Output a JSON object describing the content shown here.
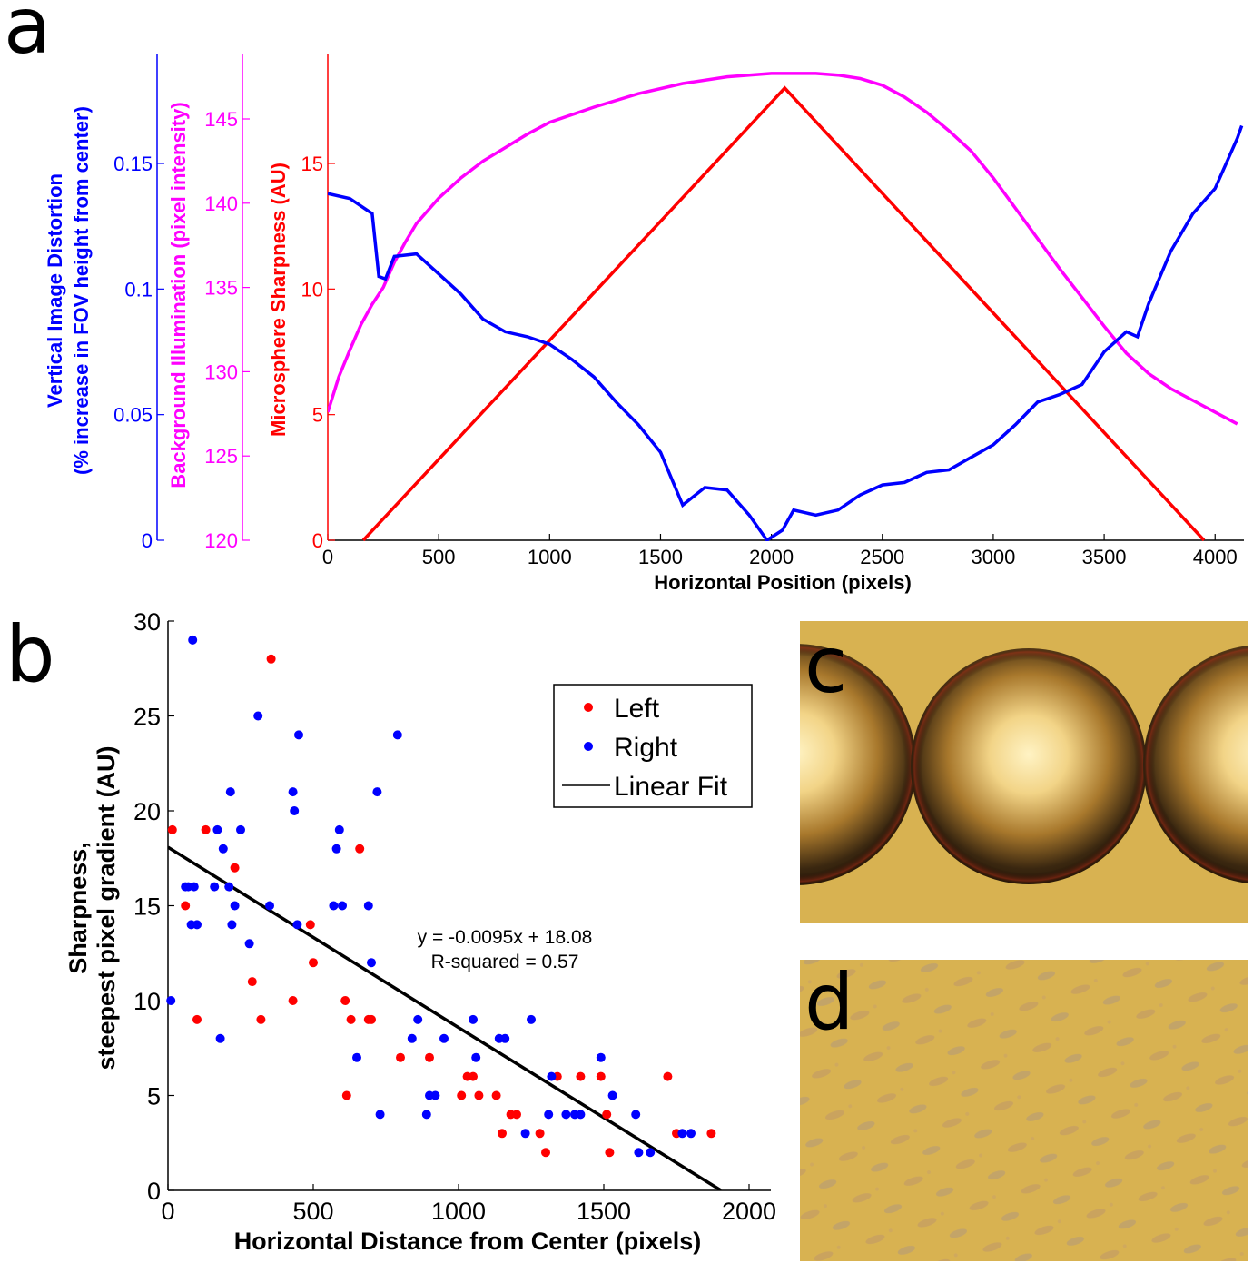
{
  "panels": {
    "a": "a",
    "b": "b",
    "c": "c",
    "d": "d"
  },
  "colors": {
    "distortion": "#0000ff",
    "illumination": "#ff00ff",
    "sharpness": "#ff0000",
    "left": "#ff0000",
    "right": "#0000ff",
    "fit": "#000000",
    "photo_bg": "#d8b251"
  },
  "chart_data": [
    {
      "panel": "a",
      "type": "line",
      "xlabel": "Horizontal Position (pixels)",
      "xlim": [
        0,
        4130
      ],
      "xticks": [
        0,
        500,
        1000,
        1500,
        2000,
        2500,
        3000,
        3500,
        4000
      ],
      "axes": {
        "distortion": {
          "label_line1": "Vertical Image Distortion",
          "label_line2": "(% increase in FOV height from center)",
          "ylim": [
            0,
            0.15
          ],
          "ticks": [
            0,
            0.05,
            0.1,
            0.15
          ],
          "tick_labels": [
            "0",
            "0.05",
            "0.1",
            "0.15"
          ]
        },
        "illumination": {
          "label": "Background Illumination (pixel intensity)",
          "ylim": [
            120,
            147.5
          ],
          "ticks": [
            120,
            125,
            130,
            135,
            140,
            145
          ],
          "tick_labels": [
            "120",
            "125",
            "130",
            "135",
            "140",
            "145"
          ]
        },
        "sharpness": {
          "label": "Microsphere Sharpness (AU)",
          "ylim": [
            0,
            18
          ],
          "ticks": [
            0,
            5,
            10,
            15
          ],
          "tick_labels": [
            "0",
            "5",
            "10",
            "15"
          ]
        }
      },
      "series": [
        {
          "axis": "distortion",
          "x": [
            0,
            100,
            200,
            230,
            260,
            300,
            400,
            500,
            600,
            700,
            800,
            900,
            1000,
            1100,
            1200,
            1300,
            1400,
            1500,
            1600,
            1700,
            1800,
            1900,
            1980,
            2050,
            2100,
            2200,
            2300,
            2400,
            2500,
            2600,
            2700,
            2800,
            2900,
            3000,
            3100,
            3200,
            3300,
            3400,
            3500,
            3600,
            3650,
            3700,
            3800,
            3900,
            4000,
            4100,
            4120
          ],
          "y": [
            0.138,
            0.136,
            0.13,
            0.105,
            0.104,
            0.113,
            0.114,
            0.106,
            0.098,
            0.088,
            0.083,
            0.081,
            0.078,
            0.072,
            0.065,
            0.055,
            0.046,
            0.035,
            0.014,
            0.021,
            0.02,
            0.01,
            0.0,
            0.004,
            0.012,
            0.01,
            0.012,
            0.018,
            0.022,
            0.023,
            0.027,
            0.028,
            0.033,
            0.038,
            0.046,
            0.055,
            0.058,
            0.062,
            0.075,
            0.083,
            0.081,
            0.094,
            0.115,
            0.13,
            0.14,
            0.16,
            0.165
          ]
        },
        {
          "axis": "illumination",
          "x": [
            0,
            50,
            100,
            150,
            200,
            250,
            300,
            350,
            400,
            500,
            600,
            700,
            800,
            900,
            1000,
            1200,
            1400,
            1600,
            1800,
            2000,
            2100,
            2200,
            2300,
            2400,
            2500,
            2600,
            2700,
            2800,
            2900,
            3000,
            3100,
            3200,
            3300,
            3400,
            3500,
            3600,
            3700,
            3800,
            3900,
            4000,
            4100
          ],
          "y": [
            127.6,
            129.7,
            131.3,
            132.8,
            134.0,
            135.0,
            136.5,
            137.7,
            138.8,
            140.3,
            141.5,
            142.5,
            143.3,
            144.1,
            144.8,
            145.7,
            146.5,
            147.1,
            147.5,
            147.7,
            147.7,
            147.7,
            147.6,
            147.4,
            147.0,
            146.3,
            145.4,
            144.3,
            143.1,
            141.5,
            139.7,
            137.9,
            136.1,
            134.4,
            132.7,
            131.1,
            129.9,
            129.0,
            128.3,
            127.6,
            126.9
          ]
        },
        {
          "axis": "sharpness",
          "x": [
            160,
            2060,
            3950
          ],
          "y": [
            0,
            18,
            0
          ]
        }
      ]
    },
    {
      "panel": "b",
      "type": "scatter",
      "xlabel": "Horizontal Distance from Center (pixels)",
      "ylabel_line1": "Sharpness,",
      "ylabel_line2": "steepest pixel gradient (AU)",
      "xlim": [
        0,
        2080
      ],
      "ylim": [
        0,
        30
      ],
      "xticks": [
        0,
        500,
        1000,
        1500,
        2000
      ],
      "yticks": [
        0,
        5,
        10,
        15,
        20,
        25,
        30
      ],
      "legend": {
        "placement": "top-right",
        "entries": [
          "Left",
          "Right",
          "Linear Fit"
        ]
      },
      "fit": {
        "slope": -0.0095,
        "intercept": 18.08,
        "equation": "y = -0.0095x + 18.08",
        "r_squared_label": "R-squared = 0.57"
      },
      "series": [
        {
          "name": "Left",
          "points": [
            [
              15,
              19
            ],
            [
              60,
              15
            ],
            [
              100,
              9
            ],
            [
              130,
              19
            ],
            [
              230,
              17
            ],
            [
              290,
              11
            ],
            [
              320,
              9
            ],
            [
              355,
              28
            ],
            [
              430,
              10
            ],
            [
              490,
              14
            ],
            [
              500,
              12
            ],
            [
              610,
              10
            ],
            [
              615,
              5
            ],
            [
              630,
              9
            ],
            [
              660,
              18
            ],
            [
              690,
              9
            ],
            [
              700,
              9
            ],
            [
              800,
              7
            ],
            [
              900,
              7
            ],
            [
              1010,
              5
            ],
            [
              1030,
              6
            ],
            [
              1050,
              6
            ],
            [
              1070,
              5
            ],
            [
              1130,
              5
            ],
            [
              1150,
              3
            ],
            [
              1180,
              4
            ],
            [
              1200,
              4
            ],
            [
              1280,
              3
            ],
            [
              1300,
              2
            ],
            [
              1340,
              6
            ],
            [
              1420,
              6
            ],
            [
              1490,
              6
            ],
            [
              1510,
              4
            ],
            [
              1520,
              2
            ],
            [
              1720,
              6
            ],
            [
              1750,
              3
            ],
            [
              1870,
              3
            ]
          ]
        },
        {
          "name": "Right",
          "points": [
            [
              10,
              10
            ],
            [
              60,
              16
            ],
            [
              70,
              16
            ],
            [
              80,
              14
            ],
            [
              85,
              29
            ],
            [
              90,
              16
            ],
            [
              100,
              14
            ],
            [
              160,
              16
            ],
            [
              170,
              19
            ],
            [
              180,
              8
            ],
            [
              190,
              18
            ],
            [
              210,
              16
            ],
            [
              215,
              21
            ],
            [
              220,
              14
            ],
            [
              230,
              15
            ],
            [
              250,
              19
            ],
            [
              280,
              13
            ],
            [
              310,
              25
            ],
            [
              350,
              15
            ],
            [
              430,
              21
            ],
            [
              435,
              20
            ],
            [
              445,
              14
            ],
            [
              450,
              24
            ],
            [
              570,
              15
            ],
            [
              580,
              18
            ],
            [
              590,
              19
            ],
            [
              600,
              15
            ],
            [
              650,
              7
            ],
            [
              690,
              15
            ],
            [
              700,
              12
            ],
            [
              720,
              21
            ],
            [
              730,
              4
            ],
            [
              790,
              24
            ],
            [
              840,
              8
            ],
            [
              860,
              9
            ],
            [
              890,
              4
            ],
            [
              900,
              5
            ],
            [
              920,
              5
            ],
            [
              950,
              8
            ],
            [
              1050,
              9
            ],
            [
              1060,
              7
            ],
            [
              1140,
              8
            ],
            [
              1160,
              8
            ],
            [
              1230,
              3
            ],
            [
              1250,
              9
            ],
            [
              1310,
              4
            ],
            [
              1320,
              6
            ],
            [
              1370,
              4
            ],
            [
              1400,
              4
            ],
            [
              1420,
              4
            ],
            [
              1490,
              7
            ],
            [
              1530,
              5
            ],
            [
              1610,
              4
            ],
            [
              1620,
              2
            ],
            [
              1660,
              2
            ],
            [
              1770,
              3
            ],
            [
              1800,
              3
            ]
          ]
        }
      ]
    }
  ]
}
